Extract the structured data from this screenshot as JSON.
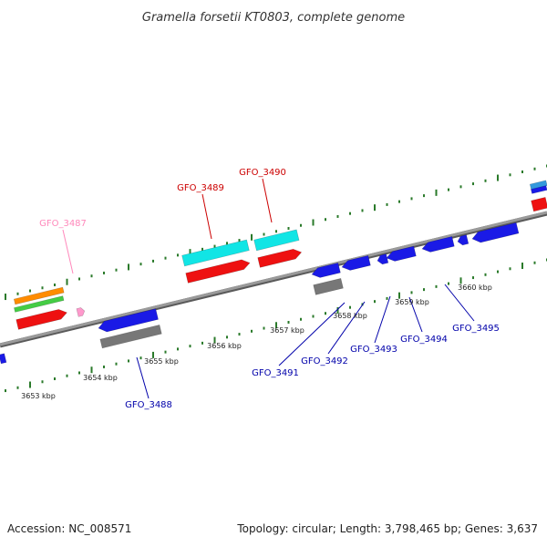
{
  "title": "Gramella forsetii KT0803, complete genome",
  "footer": {
    "accession": "Accession: NC_008571",
    "summary": "Topology: circular; Length: 3,798,465 bp; Genes: 3,637"
  },
  "colors": {
    "backbone": "#888888",
    "tick": "#2a7a2a",
    "forward_cds": "#ee1111",
    "reverse_cds": "#1a1ae6",
    "rna": "#11e5e5",
    "gray_feature": "#777777",
    "orange_feature": "#ff8c00",
    "green_feature": "#44cc44",
    "pink_feature": "#ff99cc",
    "light_blue_feature": "#3399dd",
    "blue_label": "#0000aa",
    "red_label": "#cc0000",
    "pink_label": "#ff88bb"
  },
  "scale_labels": [
    "3653 kbp",
    "3654 kbp",
    "3655 kbp",
    "3656 kbp",
    "3657 kbp",
    "3658 kbp",
    "3659 kbp",
    "3660 kbp"
  ],
  "genes": [
    {
      "id": "gfo-3487",
      "label": "GFO_3487",
      "color": "pink_label"
    },
    {
      "id": "gfo-3488",
      "label": "GFO_3488",
      "color": "blue_label"
    },
    {
      "id": "gfo-3489",
      "label": "GFO_3489",
      "color": "red_label"
    },
    {
      "id": "gfo-3490",
      "label": "GFO_3490",
      "color": "red_label"
    },
    {
      "id": "gfo-3491",
      "label": "GFO_3491",
      "color": "blue_label"
    },
    {
      "id": "gfo-3492",
      "label": "GFO_3492",
      "color": "blue_label"
    },
    {
      "id": "gfo-3493",
      "label": "GFO_3493",
      "color": "blue_label"
    },
    {
      "id": "gfo-3494",
      "label": "GFO_3494",
      "color": "blue_label"
    },
    {
      "id": "gfo-3495",
      "label": "GFO_3495",
      "color": "blue_label"
    }
  ]
}
